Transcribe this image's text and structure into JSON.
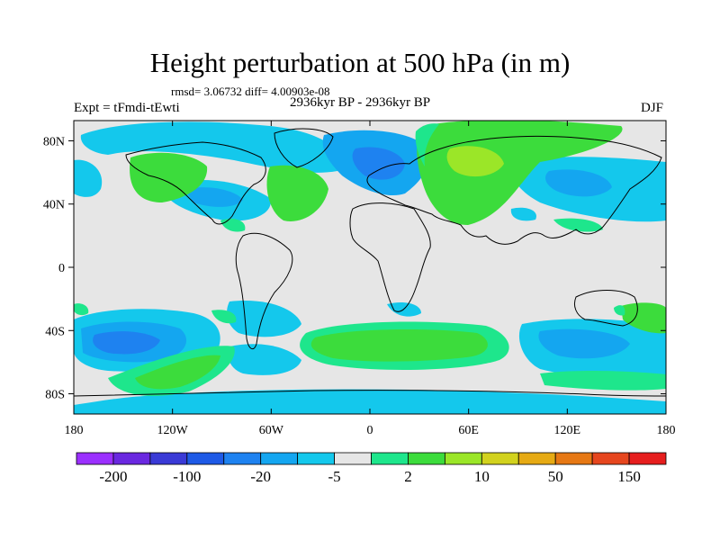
{
  "title": "Height perturbation at 500 hPa (in m)",
  "stats": "rmsd= 3.06732 diff= 4.00903e-08",
  "expt": "Expt = tFmdi-tEwti",
  "period": "2936kyr BP - 2936kyr BP",
  "season": "DJF",
  "map": {
    "lat_labels": [
      "80N",
      "40N",
      "0",
      "40S",
      "80S"
    ],
    "lat_values": [
      80,
      40,
      0,
      -40,
      -80
    ],
    "lon_labels": [
      "180",
      "120W",
      "60W",
      "0",
      "60E",
      "120E",
      "180"
    ],
    "lon_values": [
      -180,
      -120,
      -60,
      0,
      60,
      120,
      180
    ],
    "background_color": "#e6e6e6"
  },
  "colorbar": {
    "colors": [
      "#9b30ff",
      "#6a28e0",
      "#3a3ad6",
      "#1e5ae6",
      "#1e82f0",
      "#14a6f0",
      "#14c8ec",
      "#e6e6e6",
      "#1ee68c",
      "#3cdc3c",
      "#9be628",
      "#d2d21e",
      "#e6aa14",
      "#e67814",
      "#e6461e",
      "#e61e1e"
    ],
    "labels": [
      "-200",
      "-100",
      "-20",
      "-5",
      "2",
      "10",
      "50",
      "150"
    ],
    "label_boundaries": [
      1,
      3,
      5,
      7,
      9,
      11,
      13,
      15
    ]
  }
}
